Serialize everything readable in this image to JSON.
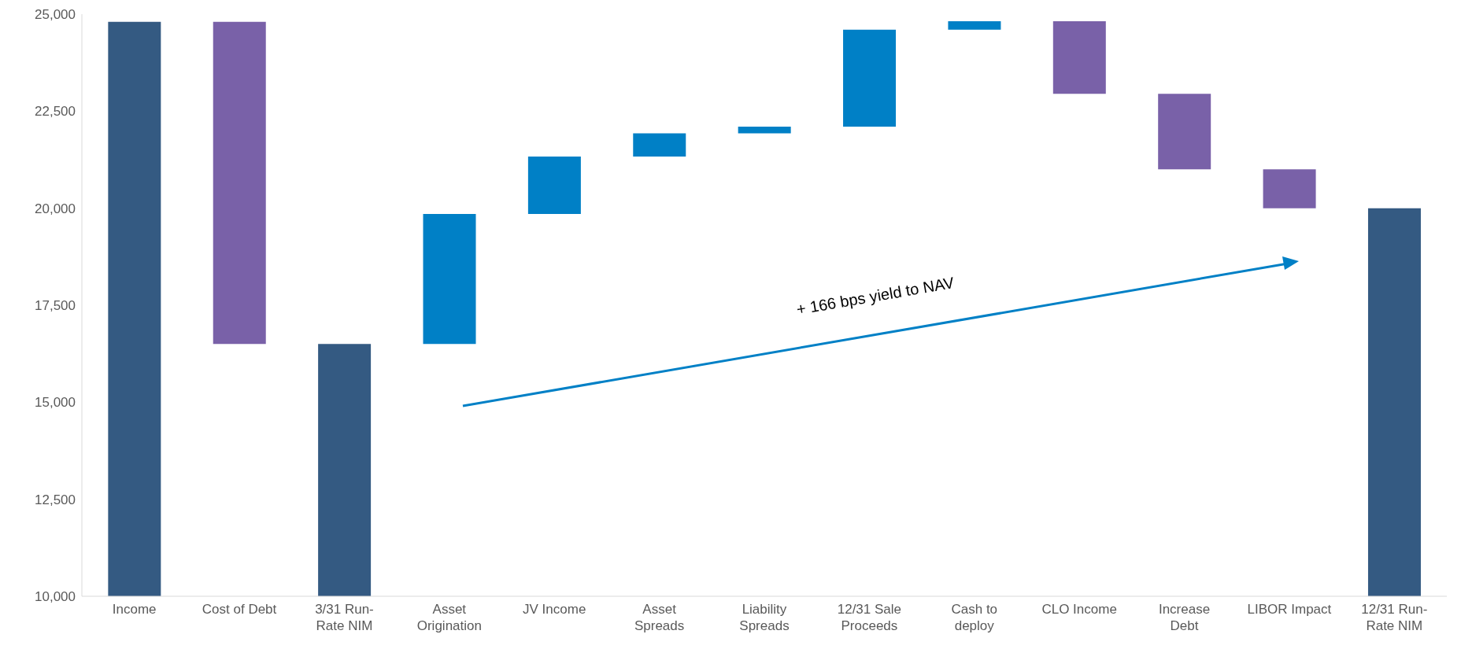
{
  "chart_data": {
    "type": "bar",
    "categories": [
      "Income",
      "Cost of Debt",
      "3/31 Run-Rate NIM",
      "Asset Origination",
      "JV Income",
      "Asset Spreads",
      "Liability Spreads",
      "12/31 Sale Proceeds",
      "Cash to deploy",
      "CLO Income",
      "Increase Debt",
      "LIBOR Impact",
      "12/31 Run-Rate NIM"
    ],
    "values": [
      24800,
      -8300,
      16500,
      3350,
      1480,
      600,
      170,
      2500,
      220,
      -1870,
      -1950,
      -1000,
      20000
    ],
    "base": [
      0,
      24800,
      0,
      16500,
      19850,
      21330,
      21930,
      22100,
      24600,
      24820,
      22950,
      21000,
      0
    ],
    "colors": [
      "#345a82",
      "#7961a8",
      "#345a82",
      "#0080c6",
      "#0080c6",
      "#0080c6",
      "#0080c6",
      "#0080c6",
      "#0080c6",
      "#7961a8",
      "#7961a8",
      "#7961a8",
      "#345a82"
    ],
    "ylim": [
      10000,
      25000
    ],
    "yticks": [
      {
        "value": 10000,
        "label": "10,000"
      },
      {
        "value": 12500,
        "label": "12,500"
      },
      {
        "value": 15000,
        "label": "15,000"
      },
      {
        "value": 17500,
        "label": "17,500"
      },
      {
        "value": 20000,
        "label": "20,000"
      },
      {
        "value": 22500,
        "label": "22,500"
      },
      {
        "value": 25000,
        "label": "25,000"
      }
    ],
    "annotations": [
      "+ 166 bps yield to NAV"
    ]
  }
}
